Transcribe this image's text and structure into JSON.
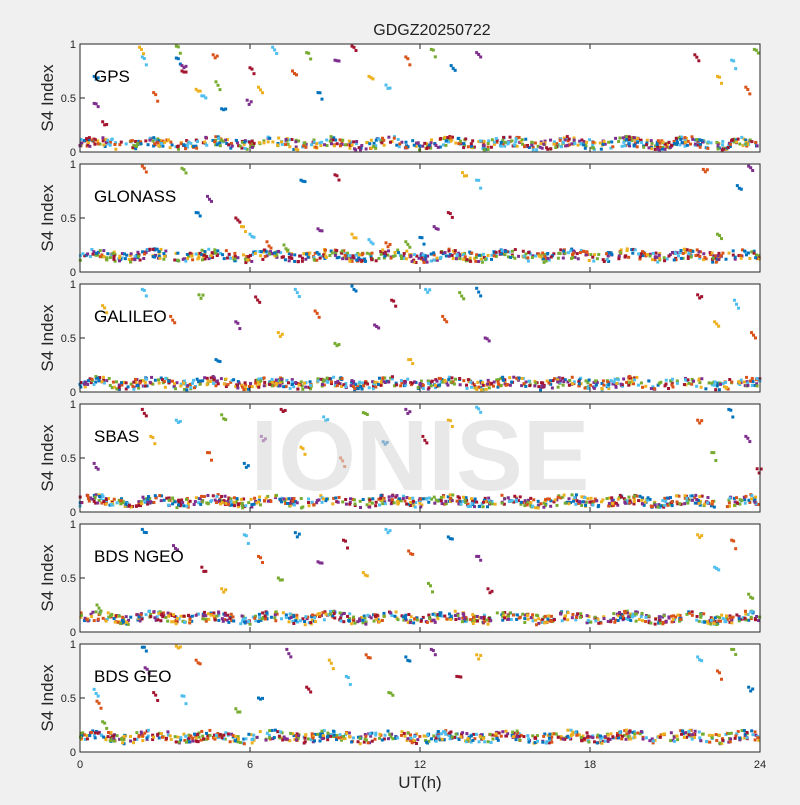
{
  "chart_data": {
    "type": "scatter",
    "title": "GDGZ20250722",
    "xlabel": "UT(h)",
    "ylabel": "S4 Index",
    "xlim": [
      0,
      24
    ],
    "ylim": [
      0,
      1
    ],
    "xticks": [
      "0",
      "6",
      "12",
      "18",
      "24"
    ],
    "yticks": [
      "0",
      "0.5",
      "1"
    ],
    "watermark": "IONISE",
    "colors": [
      "#0072BD",
      "#D95319",
      "#EDB120",
      "#7E2F8E",
      "#77AC30",
      "#4DBEEE",
      "#A2142F"
    ],
    "panels": [
      {
        "label": "GPS",
        "baseline": 0.08,
        "points": [
          [
            0.5,
            0.7
          ],
          [
            0.5,
            0.45
          ],
          [
            0.8,
            0.28
          ],
          [
            2.1,
            0.97
          ],
          [
            2.2,
            0.88
          ],
          [
            2.6,
            0.55
          ],
          [
            3.4,
            0.98
          ],
          [
            3.4,
            0.87
          ],
          [
            3.6,
            0.8
          ],
          [
            3.6,
            0.75
          ],
          [
            4.1,
            0.58
          ],
          [
            4.3,
            0.52
          ],
          [
            4.7,
            0.9
          ],
          [
            4.8,
            0.65
          ],
          [
            5.0,
            0.4
          ],
          [
            5.9,
            0.48
          ],
          [
            6.0,
            0.78
          ],
          [
            6.3,
            0.6
          ],
          [
            6.8,
            0.97
          ],
          [
            7.5,
            0.75
          ],
          [
            8.0,
            0.92
          ],
          [
            8.4,
            0.55
          ],
          [
            9.0,
            0.85
          ],
          [
            9.6,
            0.98
          ],
          [
            10.2,
            0.7
          ],
          [
            10.8,
            0.62
          ],
          [
            11.5,
            0.88
          ],
          [
            12.4,
            0.95
          ],
          [
            13.1,
            0.8
          ],
          [
            14.0,
            0.92
          ],
          [
            21.7,
            0.9
          ],
          [
            22.5,
            0.7
          ],
          [
            23.0,
            0.85
          ],
          [
            23.5,
            0.6
          ],
          [
            23.8,
            0.95
          ]
        ]
      },
      {
        "label": "GLONASS",
        "baseline": 0.15,
        "points": [
          [
            2.2,
            0.98
          ],
          [
            3.6,
            0.96
          ],
          [
            4.1,
            0.55
          ],
          [
            4.5,
            0.7
          ],
          [
            5.5,
            0.5
          ],
          [
            5.7,
            0.42
          ],
          [
            6.0,
            0.35
          ],
          [
            6.6,
            0.28
          ],
          [
            7.2,
            0.25
          ],
          [
            7.8,
            0.85
          ],
          [
            8.4,
            0.4
          ],
          [
            9.0,
            0.9
          ],
          [
            9.6,
            0.35
          ],
          [
            10.2,
            0.3
          ],
          [
            10.8,
            0.27
          ],
          [
            11.5,
            0.28
          ],
          [
            12.0,
            0.32
          ],
          [
            12.5,
            0.42
          ],
          [
            13.0,
            0.55
          ],
          [
            13.5,
            0.92
          ],
          [
            14.0,
            0.85
          ],
          [
            22.0,
            0.95
          ],
          [
            22.5,
            0.35
          ],
          [
            23.2,
            0.8
          ],
          [
            23.6,
            0.98
          ]
        ]
      },
      {
        "label": "GALILEO",
        "baseline": 0.08,
        "points": [
          [
            0.8,
            0.8
          ],
          [
            2.2,
            0.95
          ],
          [
            3.2,
            0.7
          ],
          [
            4.2,
            0.9
          ],
          [
            4.8,
            0.3
          ],
          [
            5.5,
            0.65
          ],
          [
            6.2,
            0.88
          ],
          [
            7.0,
            0.55
          ],
          [
            7.6,
            0.95
          ],
          [
            8.3,
            0.75
          ],
          [
            9.0,
            0.45
          ],
          [
            9.6,
            0.98
          ],
          [
            10.4,
            0.62
          ],
          [
            11.0,
            0.85
          ],
          [
            11.6,
            0.3
          ],
          [
            12.2,
            0.95
          ],
          [
            12.8,
            0.7
          ],
          [
            13.4,
            0.92
          ],
          [
            14.0,
            0.96
          ],
          [
            14.3,
            0.5
          ],
          [
            21.8,
            0.9
          ],
          [
            22.4,
            0.65
          ],
          [
            23.1,
            0.85
          ],
          [
            23.7,
            0.55
          ]
        ]
      },
      {
        "label": "SBAS",
        "baseline": 0.1,
        "points": [
          [
            0.5,
            0.45
          ],
          [
            2.2,
            0.95
          ],
          [
            2.5,
            0.7
          ],
          [
            3.4,
            0.85
          ],
          [
            4.5,
            0.55
          ],
          [
            5.0,
            0.9
          ],
          [
            5.8,
            0.45
          ],
          [
            6.4,
            0.7
          ],
          [
            7.1,
            0.95
          ],
          [
            7.8,
            0.6
          ],
          [
            8.6,
            0.88
          ],
          [
            9.2,
            0.5
          ],
          [
            10.0,
            0.92
          ],
          [
            10.7,
            0.65
          ],
          [
            11.5,
            0.95
          ],
          [
            12.1,
            0.7
          ],
          [
            13.0,
            0.85
          ],
          [
            14.0,
            0.97
          ],
          [
            21.8,
            0.85
          ],
          [
            22.3,
            0.55
          ],
          [
            22.9,
            0.95
          ],
          [
            23.5,
            0.7
          ],
          [
            23.9,
            0.4
          ]
        ]
      },
      {
        "label": "BDS NGEO",
        "baseline": 0.13,
        "points": [
          [
            0.6,
            0.25
          ],
          [
            2.2,
            0.95
          ],
          [
            3.3,
            0.8
          ],
          [
            4.3,
            0.6
          ],
          [
            5.0,
            0.4
          ],
          [
            5.8,
            0.9
          ],
          [
            6.3,
            0.7
          ],
          [
            7.0,
            0.5
          ],
          [
            7.6,
            0.92
          ],
          [
            8.4,
            0.65
          ],
          [
            9.3,
            0.85
          ],
          [
            10.0,
            0.55
          ],
          [
            10.8,
            0.95
          ],
          [
            11.6,
            0.75
          ],
          [
            12.3,
            0.45
          ],
          [
            13.0,
            0.88
          ],
          [
            14.0,
            0.7
          ],
          [
            14.4,
            0.4
          ],
          [
            21.8,
            0.9
          ],
          [
            22.4,
            0.6
          ],
          [
            23.0,
            0.85
          ],
          [
            23.6,
            0.35
          ]
        ]
      },
      {
        "label": "BDS GEO",
        "baseline": 0.14,
        "points": [
          [
            0.5,
            0.58
          ],
          [
            0.6,
            0.47
          ],
          [
            0.8,
            0.28
          ],
          [
            2.2,
            0.97
          ],
          [
            2.3,
            0.78
          ],
          [
            2.6,
            0.55
          ],
          [
            3.4,
            0.98
          ],
          [
            3.6,
            0.52
          ],
          [
            4.1,
            0.85
          ],
          [
            5.5,
            0.4
          ],
          [
            6.3,
            0.5
          ],
          [
            7.3,
            0.95
          ],
          [
            8.0,
            0.6
          ],
          [
            8.8,
            0.85
          ],
          [
            9.4,
            0.7
          ],
          [
            10.1,
            0.9
          ],
          [
            10.9,
            0.55
          ],
          [
            11.5,
            0.88
          ],
          [
            12.4,
            0.95
          ],
          [
            13.3,
            0.7
          ],
          [
            14.0,
            0.9
          ],
          [
            21.8,
            0.88
          ],
          [
            22.5,
            0.75
          ],
          [
            23.0,
            0.95
          ],
          [
            23.6,
            0.6
          ]
        ]
      }
    ]
  }
}
